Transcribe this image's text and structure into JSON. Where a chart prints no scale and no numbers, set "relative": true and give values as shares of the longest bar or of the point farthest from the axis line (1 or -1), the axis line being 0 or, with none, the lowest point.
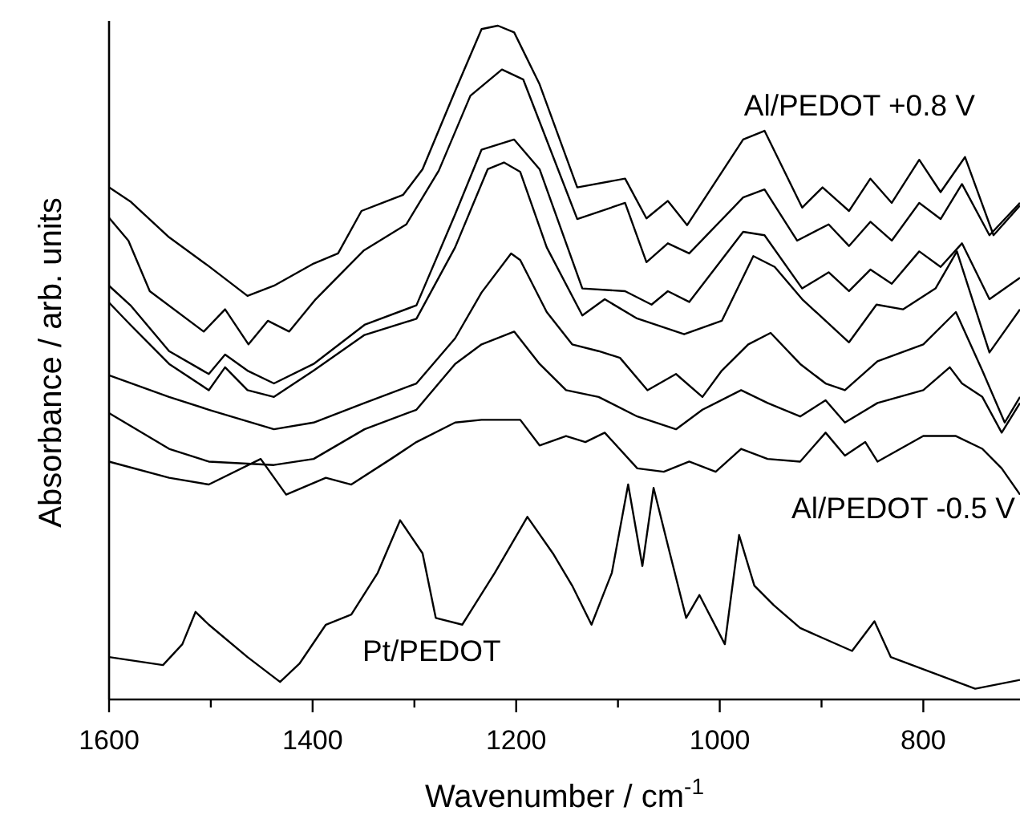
{
  "chart_data": {
    "type": "line",
    "relative": true,
    "xlabel": "Wavenumber / cm$^{-1}$",
    "ylabel": "Absorbance / arb. units",
    "xlim": [
      1600,
      705
    ],
    "xticks": [
      1600,
      {
        "value": 1500,
        "label": null
      },
      1400,
      {
        "value": 1300,
        "label": null
      },
      1200,
      {
        "value": 1100,
        "label": null
      },
      1000,
      {
        "value": 900,
        "label": null
      },
      800
    ],
    "grid": false,
    "marker": "none",
    "line_style": "solid",
    "annotations": [
      "Al/PEDOT +0.8 V",
      "Al/PEDOT -0.5 V",
      "Pt/PEDOT"
    ],
    "series": [
      {
        "color": "#000000",
        "x": [
          1600,
          1579,
          1541,
          1502,
          1464,
          1438,
          1399,
          1375,
          1352,
          1311,
          1292,
          1260,
          1234,
          1218,
          1202,
          1177,
          1140,
          1093,
          1072,
          1051,
          1032,
          977,
          956,
          919,
          899,
          873,
          852,
          831,
          804,
          783,
          759,
          731,
          705
        ],
        "values": [
          0.76,
          0.739,
          0.686,
          0.643,
          0.599,
          0.614,
          0.647,
          0.662,
          0.725,
          0.749,
          0.787,
          0.903,
          0.995,
          1.0,
          0.99,
          0.913,
          0.76,
          0.773,
          0.714,
          0.74,
          0.704,
          0.831,
          0.844,
          0.73,
          0.76,
          0.725,
          0.773,
          0.737,
          0.801,
          0.753,
          0.805,
          0.689,
          0.733
        ]
      },
      {
        "color": "#000000",
        "x": [
          1600,
          1581,
          1560,
          1507,
          1486,
          1463,
          1444,
          1423,
          1397,
          1350,
          1308,
          1276,
          1245,
          1214,
          1193,
          1140,
          1093,
          1072,
          1051,
          1030,
          977,
          956,
          924,
          893,
          873,
          852,
          831,
          804,
          783,
          762,
          735,
          705
        ],
        "values": [
          0.715,
          0.681,
          0.606,
          0.546,
          0.579,
          0.527,
          0.562,
          0.546,
          0.594,
          0.666,
          0.705,
          0.785,
          0.896,
          0.935,
          0.92,
          0.713,
          0.737,
          0.649,
          0.677,
          0.662,
          0.745,
          0.757,
          0.681,
          0.705,
          0.673,
          0.709,
          0.681,
          0.737,
          0.713,
          0.765,
          0.689,
          0.737
        ]
      },
      {
        "color": "#000000",
        "x": [
          1600,
          1579,
          1541,
          1502,
          1486,
          1464,
          1438,
          1399,
          1349,
          1298,
          1260,
          1234,
          1202,
          1177,
          1135,
          1093,
          1067,
          1051,
          1030,
          977,
          956,
          919,
          893,
          873,
          852,
          831,
          804,
          783,
          762,
          735,
          705
        ],
        "values": [
          0.614,
          0.585,
          0.517,
          0.483,
          0.512,
          0.488,
          0.469,
          0.498,
          0.556,
          0.585,
          0.72,
          0.816,
          0.831,
          0.787,
          0.61,
          0.606,
          0.586,
          0.606,
          0.59,
          0.694,
          0.689,
          0.61,
          0.634,
          0.606,
          0.638,
          0.617,
          0.665,
          0.642,
          0.677,
          0.594,
          0.626
        ]
      },
      {
        "color": "#000000",
        "x": [
          1600,
          1579,
          1541,
          1502,
          1486,
          1464,
          1438,
          1399,
          1349,
          1298,
          1260,
          1228,
          1212,
          1196,
          1170,
          1135,
          1113,
          1082,
          1035,
          998,
          967,
          946,
          919,
          873,
          846,
          820,
          788,
          767,
          735,
          705
        ],
        "values": [
          0.589,
          0.556,
          0.498,
          0.459,
          0.493,
          0.459,
          0.449,
          0.488,
          0.541,
          0.565,
          0.671,
          0.787,
          0.797,
          0.783,
          0.671,
          0.57,
          0.594,
          0.566,
          0.542,
          0.562,
          0.658,
          0.642,
          0.594,
          0.53,
          0.586,
          0.579,
          0.61,
          0.665,
          0.515,
          0.579
        ]
      },
      {
        "color": "#000000",
        "x": [
          1600,
          1541,
          1502,
          1438,
          1399,
          1349,
          1298,
          1260,
          1234,
          1205,
          1196,
          1170,
          1145,
          1119,
          1098,
          1071,
          1043,
          1017,
          998,
          972,
          950,
          921,
          896,
          877,
          845,
          800,
          768,
          742,
          720,
          705
        ],
        "values": [
          0.481,
          0.449,
          0.43,
          0.401,
          0.411,
          0.44,
          0.469,
          0.536,
          0.604,
          0.662,
          0.652,
          0.575,
          0.527,
          0.517,
          0.507,
          0.459,
          0.483,
          0.449,
          0.488,
          0.527,
          0.544,
          0.498,
          0.469,
          0.459,
          0.502,
          0.527,
          0.575,
          0.488,
          0.411,
          0.449
        ]
      },
      {
        "color": "#000000",
        "x": [
          1600,
          1541,
          1502,
          1438,
          1399,
          1349,
          1298,
          1260,
          1234,
          1202,
          1177,
          1151,
          1119,
          1081,
          1043,
          1017,
          979,
          953,
          921,
          896,
          877,
          845,
          800,
          774,
          762,
          742,
          723,
          705
        ],
        "values": [
          0.425,
          0.372,
          0.353,
          0.348,
          0.357,
          0.401,
          0.43,
          0.498,
          0.527,
          0.546,
          0.498,
          0.459,
          0.449,
          0.42,
          0.401,
          0.43,
          0.459,
          0.44,
          0.42,
          0.444,
          0.411,
          0.44,
          0.459,
          0.493,
          0.469,
          0.449,
          0.396,
          0.44
        ]
      },
      {
        "color": "#000000",
        "x": [
          1600,
          1541,
          1502,
          1451,
          1426,
          1387,
          1362,
          1323,
          1298,
          1260,
          1234,
          1196,
          1177,
          1151,
          1132,
          1113,
          1081,
          1055,
          1030,
          1004,
          979,
          953,
          921,
          896,
          877,
          857,
          845,
          800,
          768,
          742,
          723,
          705
        ],
        "values": [
          0.353,
          0.329,
          0.319,
          0.357,
          0.304,
          0.329,
          0.319,
          0.357,
          0.382,
          0.411,
          0.415,
          0.415,
          0.377,
          0.391,
          0.382,
          0.396,
          0.343,
          0.338,
          0.353,
          0.338,
          0.372,
          0.357,
          0.353,
          0.396,
          0.362,
          0.382,
          0.353,
          0.391,
          0.391,
          0.372,
          0.343,
          0.304
        ]
      },
      {
        "color": "#000000",
        "x": [
          1600,
          1547,
          1528,
          1515,
          1502,
          1464,
          1432,
          1413,
          1387,
          1362,
          1336,
          1314,
          1292,
          1279,
          1253,
          1221,
          1189,
          1164,
          1145,
          1126,
          1106,
          1090,
          1076,
          1065,
          1049,
          1033,
          1020,
          995,
          981,
          966,
          947,
          921,
          870,
          848,
          832,
          781,
          749,
          705
        ],
        "values": [
          0.063,
          0.051,
          0.082,
          0.13,
          0.111,
          0.063,
          0.026,
          0.053,
          0.111,
          0.126,
          0.188,
          0.266,
          0.217,
          0.121,
          0.111,
          0.188,
          0.271,
          0.217,
          0.169,
          0.111,
          0.188,
          0.319,
          0.198,
          0.314,
          0.217,
          0.121,
          0.155,
          0.082,
          0.244,
          0.169,
          0.14,
          0.106,
          0.072,
          0.116,
          0.063,
          0.034,
          0.016,
          0.029
        ]
      }
    ]
  }
}
